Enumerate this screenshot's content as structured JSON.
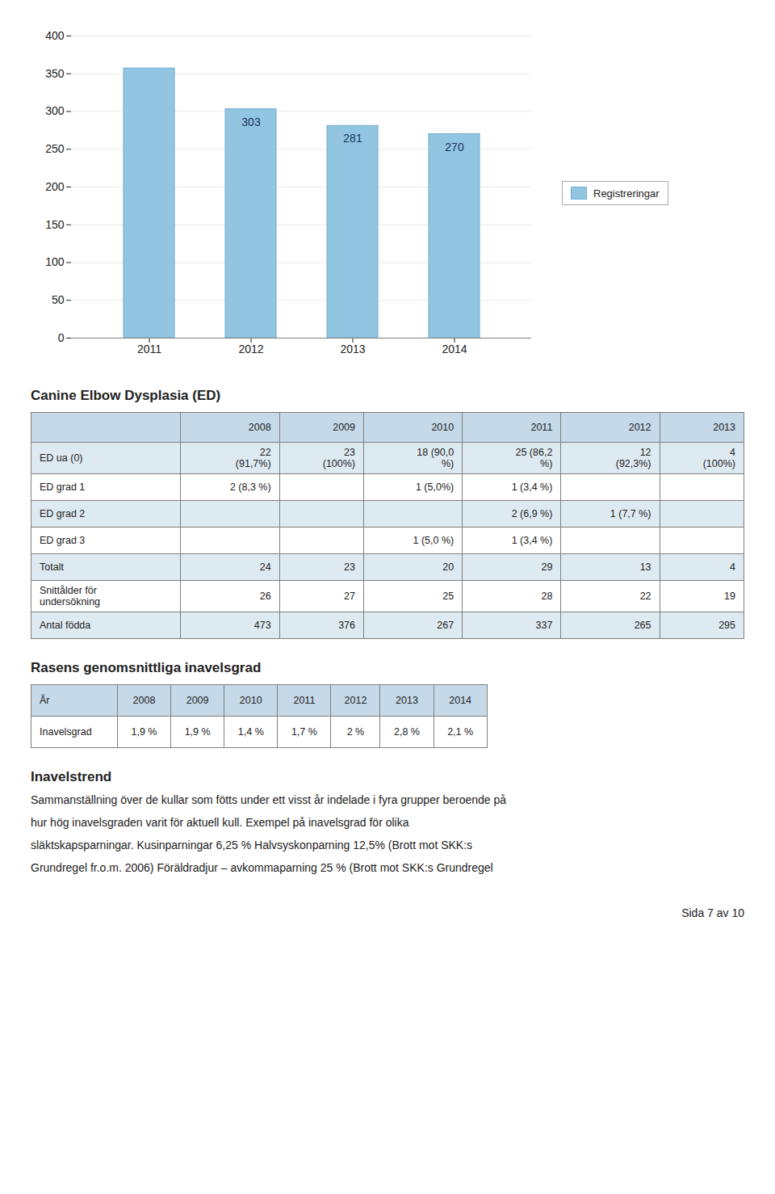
{
  "chart_data": {
    "type": "bar",
    "categories": [
      "2011",
      "2012",
      "2013",
      "2014"
    ],
    "series": [
      {
        "name": "Registreringar",
        "color": "#92C5E0",
        "values": [
          357,
          303,
          281,
          270
        ],
        "value_labels": [
          null,
          "303",
          "281",
          "270"
        ]
      }
    ],
    "ylim": [
      0,
      400
    ],
    "yticks": [
      0,
      50,
      100,
      150,
      200,
      250,
      300,
      350,
      400
    ],
    "grid": true,
    "legend": "right",
    "data_labels": true
  },
  "tables": [
    {
      "title": "Canine Elbow Dysplasia (ED)",
      "columns": [
        null,
        "2008",
        "2009",
        "2010",
        "2011",
        "2012",
        "2013"
      ],
      "rows": [
        [
          "ED ua (0)",
          "22\n(91,7%)",
          "23\n(100%)",
          "18 (90,0\n%)",
          "25 (86,2\n%)",
          "12\n(92,3%)",
          "4\n(100%)"
        ],
        [
          "ED grad 1",
          "2 (8,3 %)",
          null,
          "1 (5,0%)",
          "1 (3,4 %)",
          null,
          null
        ],
        [
          "ED grad 2",
          null,
          null,
          null,
          "2 (6,9 %)",
          "1 (7,7 %)",
          null
        ],
        [
          "ED grad 3",
          null,
          null,
          "1 (5,0 %)",
          "1 (3,4 %)",
          null,
          null
        ],
        [
          "Totalt",
          "24",
          "23",
          "20",
          "29",
          "13",
          "4"
        ],
        [
          "Snittålder för\nundersökning",
          "26",
          "27",
          "25",
          "28",
          "22",
          "19"
        ],
        [
          "Antal födda",
          "473",
          "376",
          "267",
          "337",
          "265",
          "295"
        ]
      ]
    },
    {
      "title": "Rasens genomsnittliga inavelsgrad",
      "rows": [
        [
          "År",
          "2008",
          "2009",
          "2010",
          "2011",
          "2012",
          "2013",
          "2014"
        ],
        [
          "Inavelsgrad",
          "1,9 %",
          "1,9 %",
          "1,4 %",
          "1,7 %",
          "2 %",
          "2,8 %",
          "2,1 %"
        ]
      ]
    }
  ],
  "text": {
    "title": "Inavelstrend",
    "lines": [
      "Sammanställning över de kullar som fötts under ett visst år indelade i fyra grupper beroende på",
      "hur hög inavelsgraden varit för aktuell kull. Exempel på inavelsgrad för olika",
      "släktskapsparningar. Kusinparningar 6,25 % Halvsyskonparning 12,5% (Brott mot SKK:s",
      "Grundregel fr.o.m. 2006) Föräldradjur – avkommaparning 25 % (Brott mot SKK:s Grundregel"
    ]
  },
  "page_text": "Sida 7 av 10"
}
